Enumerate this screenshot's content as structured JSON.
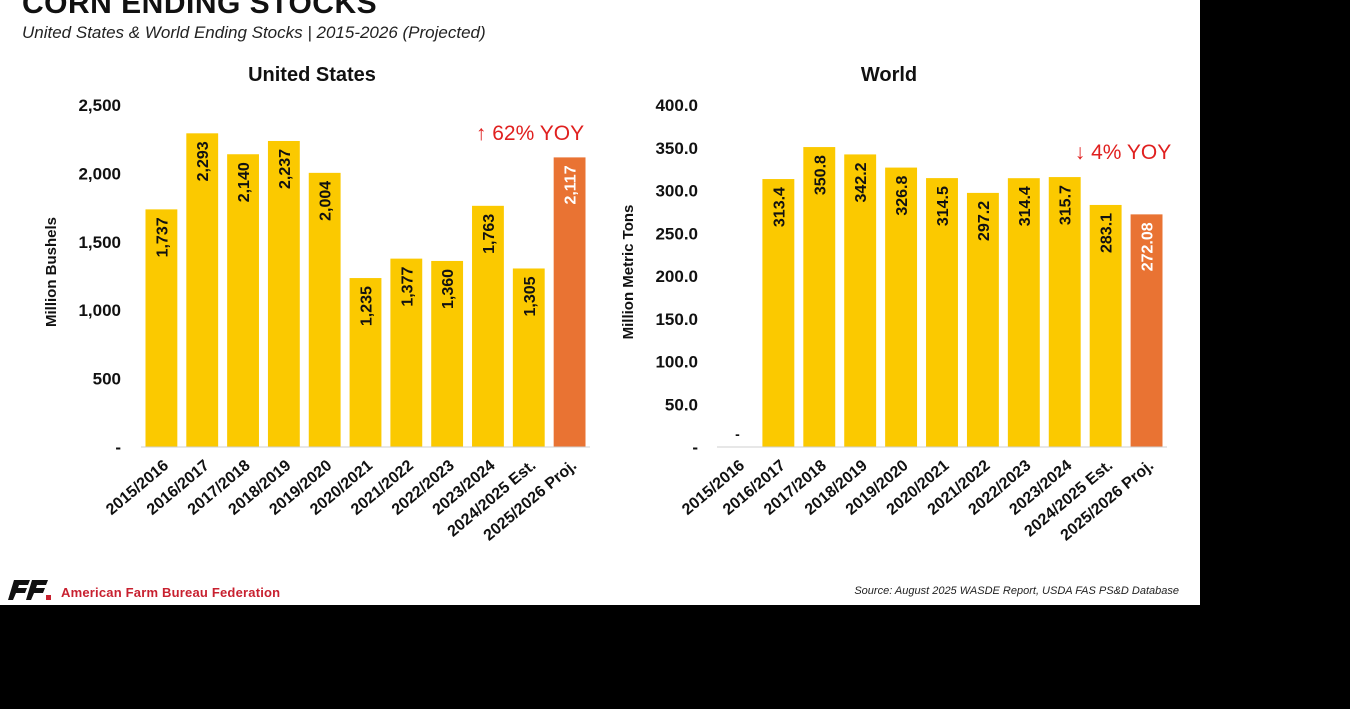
{
  "header": {
    "title": "CORN ENDING STOCKS",
    "subtitle": "United States & World Ending Stocks | 2015-2026 (Projected)"
  },
  "colors": {
    "bar": "#fbc900",
    "projected_bar": "#e97333",
    "yoy_text": "#e0201f",
    "axis": "#222222"
  },
  "chart_data": [
    {
      "type": "bar",
      "title": "United States",
      "ylabel": "Million Bushels",
      "xlabel": "",
      "ylim": [
        0,
        2500
      ],
      "yticks": [
        0,
        500,
        1000,
        1500,
        2000,
        2500
      ],
      "ytick_labels": [
        "-",
        "500",
        "1,000",
        "1,500",
        "2,000",
        "2,500"
      ],
      "categories": [
        "2015/2016",
        "2016/2017",
        "2017/2018",
        "2018/2019",
        "2019/2020",
        "2020/2021",
        "2021/2022",
        "2022/2023",
        "2023/2024",
        "2024/2025 Est.",
        "2025/2026 Proj."
      ],
      "values": [
        1737,
        2293,
        2140,
        2237,
        2004,
        1235,
        1377,
        1360,
        1763,
        1305,
        2117
      ],
      "value_labels": [
        "1,737",
        "2,293",
        "2,140",
        "2,237",
        "2,004",
        "1,235",
        "1,377",
        "1,360",
        "1,763",
        "1,305",
        "2,117"
      ],
      "highlight_index": 10,
      "annotation": {
        "arrow": "↑",
        "text": "62% YOY"
      },
      "grid": false,
      "legend": "none"
    },
    {
      "type": "bar",
      "title": "World",
      "ylabel": "Million Metric Tons",
      "xlabel": "",
      "ylim": [
        0,
        400
      ],
      "yticks": [
        0,
        50,
        100,
        150,
        200,
        250,
        300,
        350,
        400
      ],
      "ytick_labels": [
        "-",
        "50.0",
        "100.0",
        "150.0",
        "200.0",
        "250.0",
        "300.0",
        "350.0",
        "400.0"
      ],
      "categories": [
        "2015/2016",
        "2016/2017",
        "2017/2018",
        "2018/2019",
        "2019/2020",
        "2020/2021",
        "2021/2022",
        "2022/2023",
        "2023/2024",
        "2024/2025 Est.",
        "2025/2026 Proj."
      ],
      "values": [
        0,
        313.4,
        350.8,
        342.2,
        326.8,
        314.5,
        297.2,
        314.4,
        315.7,
        283.1,
        272.08
      ],
      "value_labels": [
        "-",
        "313.4",
        "350.8",
        "342.2",
        "326.8",
        "314.5",
        "297.2",
        "314.4",
        "315.7",
        "283.1",
        "272.08"
      ],
      "highlight_index": 10,
      "annotation": {
        "arrow": "↓",
        "text": "4% YOY"
      },
      "grid": false,
      "legend": "none"
    }
  ],
  "footer": {
    "organization": "American Farm Bureau Federation",
    "source": "Source: August 2025 WASDE Report, USDA FAS PS&D Database",
    "logo_icon": "afbf-logo-icon"
  }
}
